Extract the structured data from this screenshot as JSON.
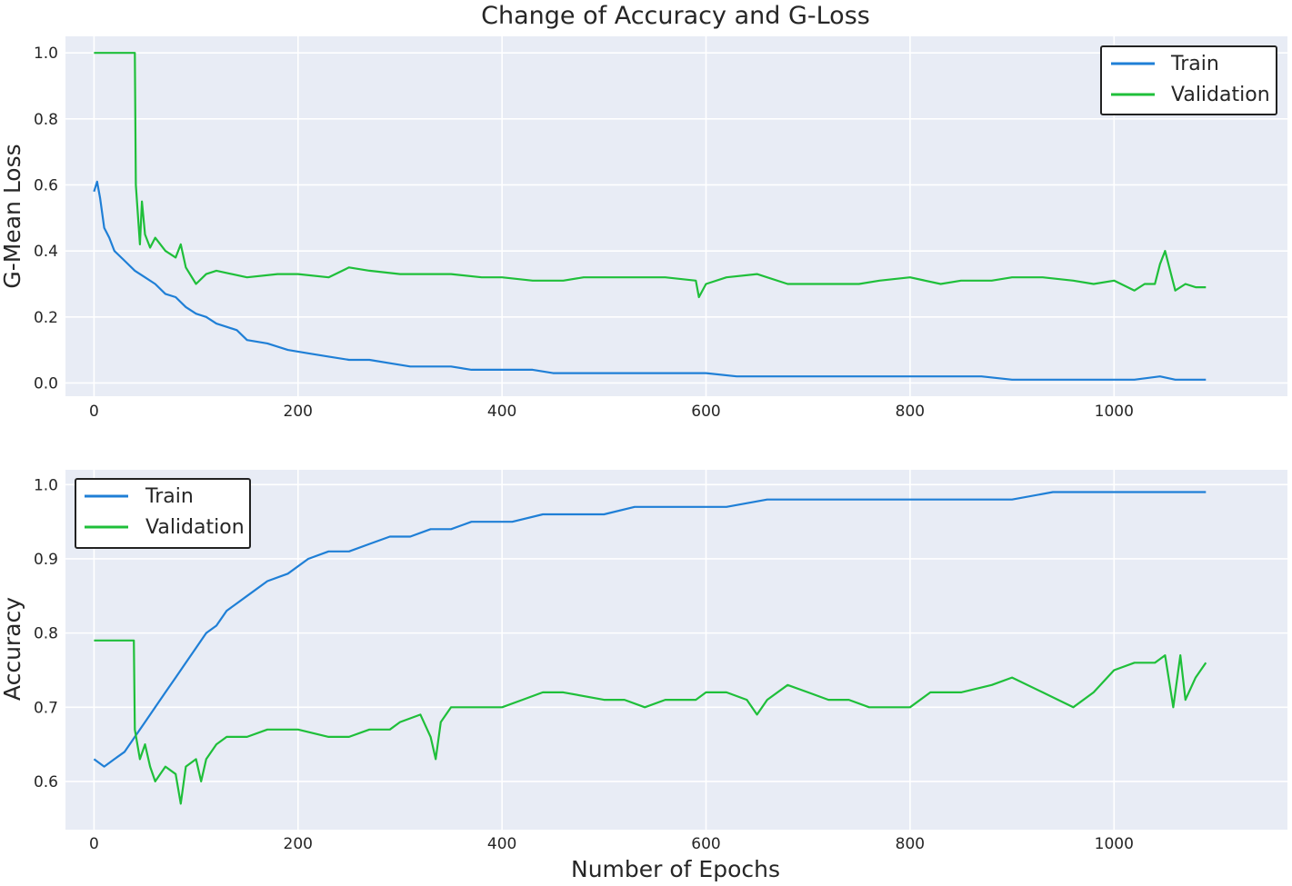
{
  "figure": {
    "title": "Change of Accuracy and G-Loss",
    "xlabel": "Number of Epochs"
  },
  "colors": {
    "train": "#1f7fd6",
    "validation": "#1fbf3a",
    "plot_background": "#e8ecf5"
  },
  "chart_data": [
    {
      "type": "line",
      "ylabel": "G-Mean Loss",
      "xlim": [
        -28,
        1170
      ],
      "ylim": [
        -0.04,
        1.05
      ],
      "xticks": [
        0,
        200,
        400,
        600,
        800,
        1000
      ],
      "yticks": [
        "0.0",
        "0.2",
        "0.4",
        "0.6",
        "0.8",
        "1.0"
      ],
      "grid": true,
      "legend": "top-right",
      "series": [
        {
          "name": "Train",
          "x": [
            0,
            3,
            6,
            10,
            15,
            20,
            30,
            40,
            50,
            60,
            70,
            80,
            90,
            100,
            110,
            120,
            130,
            140,
            150,
            170,
            190,
            210,
            230,
            250,
            270,
            290,
            310,
            330,
            350,
            370,
            390,
            410,
            430,
            450,
            480,
            510,
            540,
            570,
            600,
            630,
            660,
            690,
            720,
            750,
            780,
            810,
            840,
            870,
            900,
            930,
            960,
            990,
            1020,
            1045,
            1060,
            1075,
            1090
          ],
          "y": [
            0.58,
            0.61,
            0.56,
            0.47,
            0.44,
            0.4,
            0.37,
            0.34,
            0.32,
            0.3,
            0.27,
            0.26,
            0.23,
            0.21,
            0.2,
            0.18,
            0.17,
            0.16,
            0.13,
            0.12,
            0.1,
            0.09,
            0.08,
            0.07,
            0.07,
            0.06,
            0.05,
            0.05,
            0.05,
            0.04,
            0.04,
            0.04,
            0.04,
            0.03,
            0.03,
            0.03,
            0.03,
            0.03,
            0.03,
            0.02,
            0.02,
            0.02,
            0.02,
            0.02,
            0.02,
            0.02,
            0.02,
            0.02,
            0.01,
            0.01,
            0.01,
            0.01,
            0.01,
            0.02,
            0.01,
            0.01,
            0.01
          ]
        },
        {
          "name": "Validation",
          "x": [
            0,
            20,
            40,
            41,
            45,
            47,
            50,
            55,
            60,
            70,
            80,
            85,
            90,
            100,
            110,
            120,
            150,
            180,
            200,
            230,
            250,
            270,
            300,
            330,
            350,
            380,
            400,
            430,
            460,
            480,
            500,
            530,
            560,
            590,
            593,
            600,
            620,
            650,
            680,
            700,
            750,
            770,
            800,
            830,
            850,
            880,
            900,
            930,
            960,
            980,
            1000,
            1020,
            1030,
            1040,
            1045,
            1050,
            1060,
            1070,
            1080,
            1090
          ],
          "y": [
            1.0,
            1.0,
            1.0,
            0.6,
            0.42,
            0.55,
            0.45,
            0.41,
            0.44,
            0.4,
            0.38,
            0.42,
            0.35,
            0.3,
            0.33,
            0.34,
            0.32,
            0.33,
            0.33,
            0.32,
            0.35,
            0.34,
            0.33,
            0.33,
            0.33,
            0.32,
            0.32,
            0.31,
            0.31,
            0.32,
            0.32,
            0.32,
            0.32,
            0.31,
            0.26,
            0.3,
            0.32,
            0.33,
            0.3,
            0.3,
            0.3,
            0.31,
            0.32,
            0.3,
            0.31,
            0.31,
            0.32,
            0.32,
            0.31,
            0.3,
            0.31,
            0.28,
            0.3,
            0.3,
            0.36,
            0.4,
            0.28,
            0.3,
            0.29,
            0.29
          ]
        }
      ]
    },
    {
      "type": "line",
      "ylabel": "Accuracy",
      "xlim": [
        -28,
        1170
      ],
      "ylim": [
        0.535,
        1.02
      ],
      "xticks": [
        0,
        200,
        400,
        600,
        800,
        1000
      ],
      "yticks": [
        "0.6",
        "0.7",
        "0.8",
        "0.9",
        "1.0"
      ],
      "grid": true,
      "legend": "top-left",
      "series": [
        {
          "name": "Train",
          "x": [
            0,
            10,
            20,
            30,
            40,
            50,
            60,
            70,
            80,
            90,
            100,
            110,
            120,
            130,
            140,
            150,
            170,
            190,
            210,
            230,
            250,
            270,
            290,
            310,
            330,
            350,
            370,
            390,
            410,
            440,
            470,
            500,
            530,
            560,
            590,
            620,
            660,
            700,
            740,
            780,
            820,
            860,
            900,
            940,
            980,
            1020,
            1060,
            1090
          ],
          "y": [
            0.63,
            0.62,
            0.63,
            0.64,
            0.66,
            0.68,
            0.7,
            0.72,
            0.74,
            0.76,
            0.78,
            0.8,
            0.81,
            0.83,
            0.84,
            0.85,
            0.87,
            0.88,
            0.9,
            0.91,
            0.91,
            0.92,
            0.93,
            0.93,
            0.94,
            0.94,
            0.95,
            0.95,
            0.95,
            0.96,
            0.96,
            0.96,
            0.97,
            0.97,
            0.97,
            0.97,
            0.98,
            0.98,
            0.98,
            0.98,
            0.98,
            0.98,
            0.98,
            0.99,
            0.99,
            0.99,
            0.99,
            0.99
          ]
        },
        {
          "name": "Validation",
          "x": [
            0,
            20,
            39,
            40,
            45,
            50,
            55,
            60,
            65,
            70,
            80,
            85,
            90,
            100,
            105,
            110,
            120,
            130,
            150,
            170,
            200,
            230,
            250,
            270,
            290,
            300,
            320,
            330,
            335,
            340,
            350,
            380,
            400,
            420,
            440,
            450,
            460,
            500,
            520,
            540,
            560,
            590,
            600,
            620,
            640,
            650,
            660,
            680,
            700,
            720,
            740,
            760,
            800,
            820,
            850,
            880,
            900,
            930,
            960,
            980,
            1000,
            1020,
            1040,
            1050,
            1058,
            1065,
            1070,
            1080,
            1090
          ],
          "y": [
            0.79,
            0.79,
            0.79,
            0.67,
            0.63,
            0.65,
            0.62,
            0.6,
            0.61,
            0.62,
            0.61,
            0.57,
            0.62,
            0.63,
            0.6,
            0.63,
            0.65,
            0.66,
            0.66,
            0.67,
            0.67,
            0.66,
            0.66,
            0.67,
            0.67,
            0.68,
            0.69,
            0.66,
            0.63,
            0.68,
            0.7,
            0.7,
            0.7,
            0.71,
            0.72,
            0.72,
            0.72,
            0.71,
            0.71,
            0.7,
            0.71,
            0.71,
            0.72,
            0.72,
            0.71,
            0.69,
            0.71,
            0.73,
            0.72,
            0.71,
            0.71,
            0.7,
            0.7,
            0.72,
            0.72,
            0.73,
            0.74,
            0.72,
            0.7,
            0.72,
            0.75,
            0.76,
            0.76,
            0.77,
            0.7,
            0.77,
            0.71,
            0.74,
            0.76
          ]
        }
      ]
    }
  ]
}
